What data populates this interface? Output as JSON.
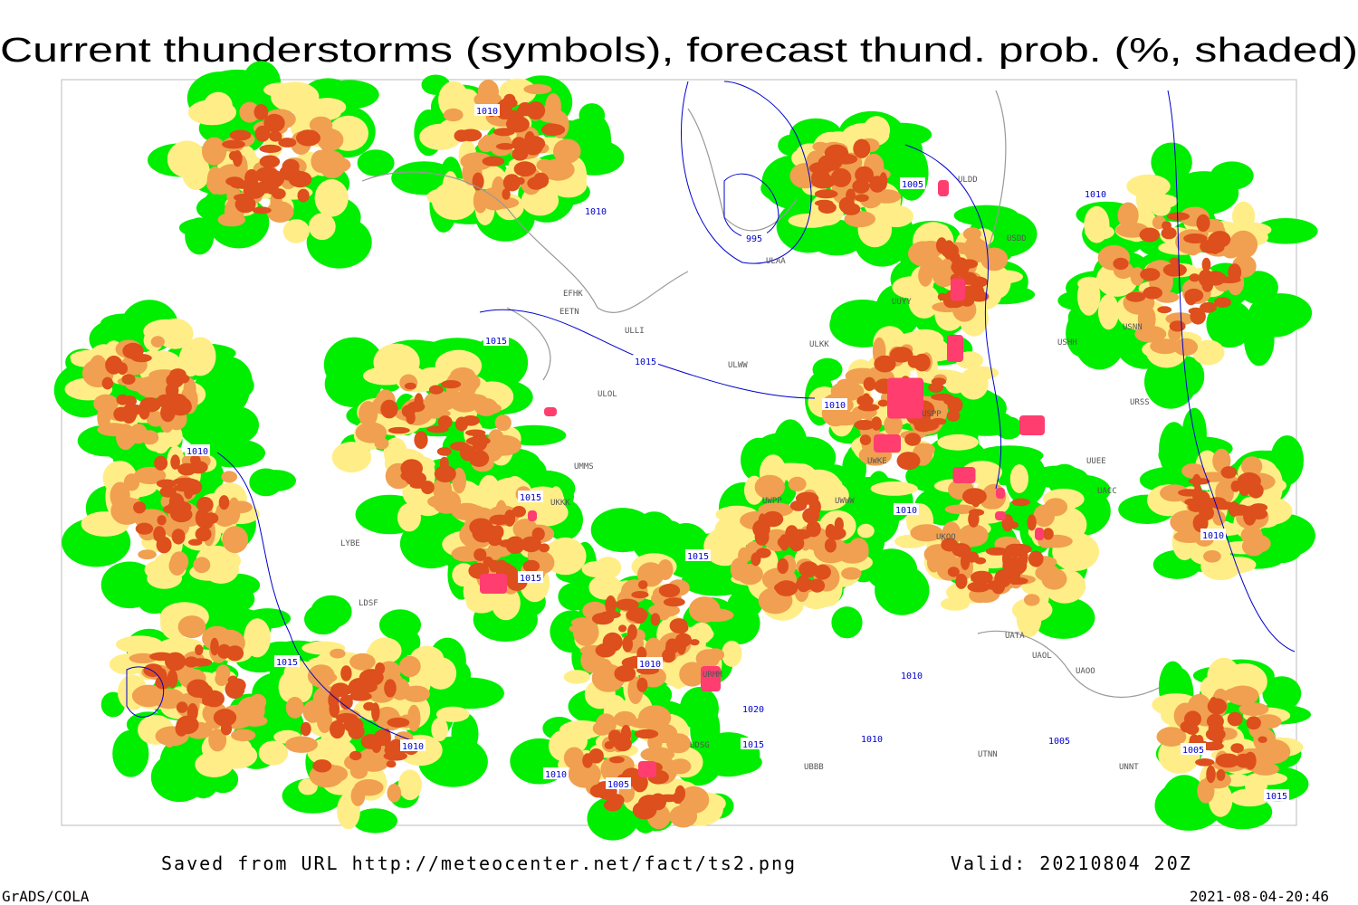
{
  "header": {
    "title": "Current thunderstorms (symbols), forecast thund. prob. (%, shaded)"
  },
  "map": {
    "isobar_labels": [
      "1010",
      "1010",
      "995",
      "1005",
      "1015",
      "1015",
      "1010",
      "1010",
      "1015",
      "1015",
      "1015",
      "1010",
      "1015",
      "1010",
      "1010",
      "1020",
      "1015",
      "1010",
      "1005",
      "1010",
      "1010",
      "1005",
      "1005",
      "1015",
      "1010",
      "1010"
    ],
    "station_labels": [
      "ULDD",
      "USDD",
      "ULAA",
      "UUYY",
      "ULKK",
      "USHH",
      "ULWW",
      "EFHK",
      "EETN",
      "ULLI",
      "ULOL",
      "UMMS",
      "UKKK",
      "LYBE",
      "LDSF",
      "UKOO",
      "URSS",
      "URMM",
      "UDSG",
      "UBBB",
      "UTNN",
      "UATA",
      "UAOL",
      "UACC",
      "UNNT",
      "USNN",
      "UUEE",
      "UWKE",
      "USPP",
      "UWPP",
      "UWWW",
      "UAOO"
    ]
  },
  "footer": {
    "saved": "Saved from URL  http://meteocenter.net/fact/ts2.png",
    "valid": "Valid: 20210804 20Z",
    "software": "GrADS/COLA",
    "timestamp": "2021-08-04-20:46"
  }
}
